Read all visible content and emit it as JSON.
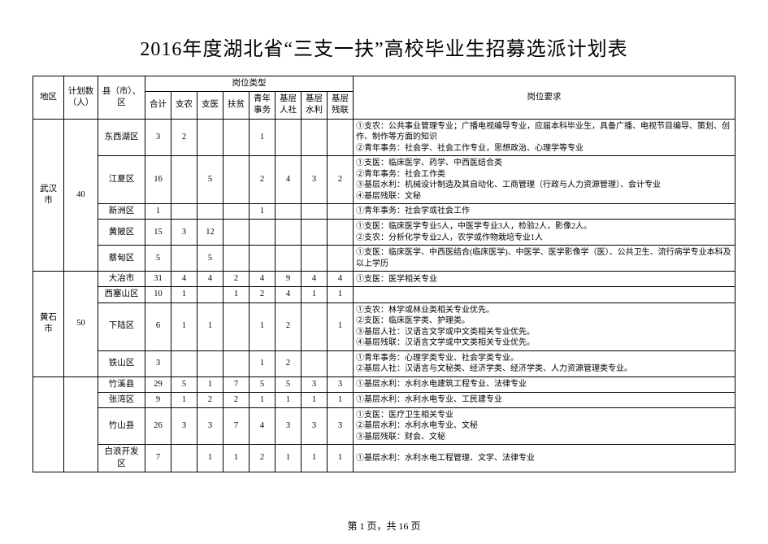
{
  "title": "2016年度湖北省“三支一扶”高校毕业生招募选派计划表",
  "footer": "第 1 页，共 16 页",
  "header": {
    "region": "地区",
    "plan": "计划数（人）",
    "county": "县（市）、区",
    "job_type_group": "岗位类型",
    "req_group": "岗位要求",
    "cols": [
      "合计",
      "支农",
      "支医",
      "扶贫",
      "青年事务",
      "基层人社",
      "基层水利",
      "基层残联"
    ]
  },
  "groups": [
    {
      "region": "武汉市",
      "plan": "40",
      "rows": [
        {
          "county": "东西湖区",
          "cells": [
            "3",
            "2",
            "",
            "",
            "1",
            "",
            "",
            ""
          ],
          "req": "①支农：公共事业管理专业；广播电视编导专业，应届本科毕业生，具备广播、电视节目编导、策划、创作、制作等方面的知识\n②青年事务：社会学、社会工作专业，思想政治、心理学等专业"
        },
        {
          "county": "江夏区",
          "cells": [
            "16",
            "",
            "5",
            "",
            "2",
            "4",
            "3",
            "2"
          ],
          "req": "①支医：临床医学、药学、中西医结合类\n②青年事务：社会工作类\n③基层水利：机械设计制造及其自动化、工商管理（行政与人力资源管理）、会计专业\n④基层残联：文秘"
        },
        {
          "county": "新洲区",
          "cells": [
            "1",
            "",
            "",
            "",
            "1",
            "",
            "",
            ""
          ],
          "req": "①青年事务：社会学或社会工作"
        },
        {
          "county": "黄陂区",
          "cells": [
            "15",
            "3",
            "12",
            "",
            "",
            "",
            "",
            ""
          ],
          "req": "①支医：临床医学专业5人，中医学专业3人，检验2人，影像2人。\n②支农：分析化学专业2人，农学或作物栽培专业1人"
        },
        {
          "county": "蔡甸区",
          "cells": [
            "5",
            "",
            "5",
            "",
            "",
            "",
            "",
            ""
          ],
          "req": "①支医：临床医学、中西医结合(临床医学)、中医学、医学影像学（医）、公共卫生、流行病学专业本科及以上学历"
        }
      ]
    },
    {
      "region": "黄石市",
      "plan": "50",
      "rows": [
        {
          "county": "大冶市",
          "cells": [
            "31",
            "4",
            "4",
            "2",
            "4",
            "9",
            "4",
            "4"
          ],
          "req": "①支医：医学相关专业"
        },
        {
          "county": "西塞山区",
          "cells": [
            "10",
            "1",
            "",
            "1",
            "2",
            "4",
            "1",
            "1"
          ],
          "req": ""
        },
        {
          "county": "下陆区",
          "cells": [
            "6",
            "1",
            "1",
            "",
            "1",
            "2",
            "",
            "1"
          ],
          "req": "①支农：林学或林业类相关专业优先。\n②支医：临床医学类、护理类。\n③基层人社：汉语言文学或中文类相关专业优先。\n④基层残联：汉语言文学或中文类相关专业优先。"
        },
        {
          "county": "铁山区",
          "cells": [
            "3",
            "",
            "",
            "",
            "1",
            "2",
            "",
            ""
          ],
          "req": "①青年事务：心理学类专业、社会学类专业。\n②基层人社：汉语言与文秘类、经济学类、经济学类、人力资源管理类专业。"
        }
      ]
    },
    {
      "region": "",
      "plan": "",
      "rows": [
        {
          "county": "竹溪县",
          "cells": [
            "29",
            "5",
            "1",
            "7",
            "5",
            "5",
            "3",
            "3"
          ],
          "req": "①基层水利：水利水电建筑工程专业、法律专业"
        },
        {
          "county": "张湾区",
          "cells": [
            "9",
            "1",
            "2",
            "2",
            "1",
            "1",
            "1",
            "1"
          ],
          "req": "①基层水利：水利水电专业、工民建专业"
        },
        {
          "county": "竹山县",
          "cells": [
            "26",
            "3",
            "3",
            "7",
            "4",
            "3",
            "3",
            "3"
          ],
          "req": "①支医：医疗卫生相关专业\n②基层水利：水利水电专业、文秘\n③基层残联：财会、文秘"
        },
        {
          "county": "白浪开发区",
          "cells": [
            "7",
            "",
            "1",
            "1",
            "2",
            "1",
            "1",
            "1"
          ],
          "req": "①基层水利：水利水电工程管理、文学、法律专业"
        }
      ]
    }
  ]
}
